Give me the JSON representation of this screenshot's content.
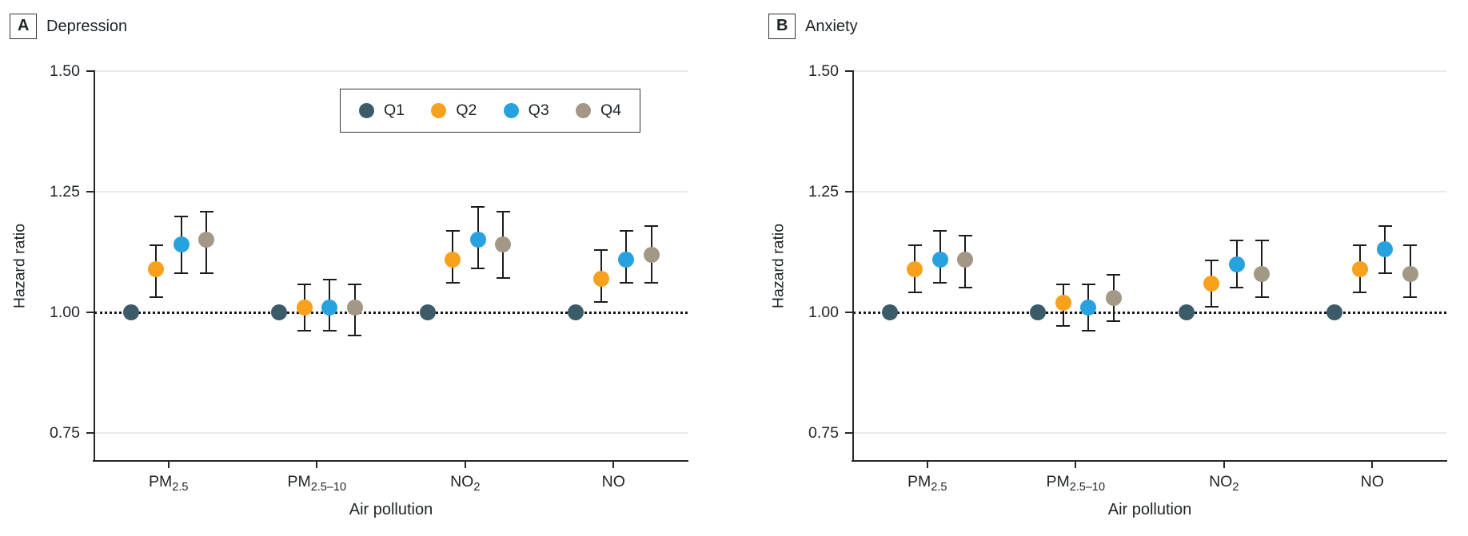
{
  "figure": {
    "panels": [
      {
        "letter": "A",
        "title": "Depression"
      },
      {
        "letter": "B",
        "title": "Anxiety"
      }
    ],
    "y_axis": {
      "label": "Hazard ratio",
      "tick_labels": [
        "1.50",
        "1.25",
        "1.00",
        "0.75"
      ]
    },
    "x_axis": {
      "label": "Air pollution",
      "tick_display": [
        {
          "base": "PM",
          "sub": "2.5"
        },
        {
          "base": "PM",
          "sub": "2.5–10"
        },
        {
          "base": "NO",
          "sub": "2"
        },
        {
          "base": "NO",
          "sub": ""
        }
      ]
    },
    "legend": {
      "items": [
        {
          "label": "Q1",
          "color": "#3B5B69"
        },
        {
          "label": "Q2",
          "color": "#F7A11C"
        },
        {
          "label": "Q3",
          "color": "#27A2DF"
        },
        {
          "label": "Q4",
          "color": "#A39785"
        }
      ]
    }
  },
  "chart_data": [
    {
      "type": "scatter",
      "panel": "A",
      "title": "Depression",
      "xlabel": "Air pollution",
      "ylabel": "Hazard ratio",
      "ylim": [
        0.69,
        1.5
      ],
      "yticks": [
        0.75,
        1.0,
        1.25,
        1.5
      ],
      "reference_line": 1.0,
      "grid": "horizontal",
      "legend_position": "inside-top-center",
      "categories": [
        "PM2.5",
        "PM2.5-10",
        "NO2",
        "NO"
      ],
      "series": [
        {
          "name": "Q1",
          "values": [
            1.0,
            1.0,
            1.0,
            1.0
          ],
          "ci_low": [
            null,
            null,
            null,
            null
          ],
          "ci_high": [
            null,
            null,
            null,
            null
          ]
        },
        {
          "name": "Q2",
          "values": [
            1.09,
            1.01,
            1.11,
            1.07
          ],
          "ci_low": [
            1.03,
            0.96,
            1.06,
            1.02
          ],
          "ci_high": [
            1.14,
            1.06,
            1.17,
            1.13
          ]
        },
        {
          "name": "Q3",
          "values": [
            1.14,
            1.01,
            1.15,
            1.11
          ],
          "ci_low": [
            1.08,
            0.96,
            1.09,
            1.06
          ],
          "ci_high": [
            1.2,
            1.07,
            1.22,
            1.17
          ]
        },
        {
          "name": "Q4",
          "values": [
            1.15,
            1.01,
            1.14,
            1.12
          ],
          "ci_low": [
            1.08,
            0.95,
            1.07,
            1.06
          ],
          "ci_high": [
            1.21,
            1.06,
            1.21,
            1.18
          ]
        }
      ]
    },
    {
      "type": "scatter",
      "panel": "B",
      "title": "Anxiety",
      "xlabel": "Air pollution",
      "ylabel": "Hazard ratio",
      "ylim": [
        0.69,
        1.5
      ],
      "yticks": [
        0.75,
        1.0,
        1.25,
        1.5
      ],
      "reference_line": 1.0,
      "grid": "horizontal",
      "legend_position": "none",
      "categories": [
        "PM2.5",
        "PM2.5-10",
        "NO2",
        "NO"
      ],
      "series": [
        {
          "name": "Q1",
          "values": [
            1.0,
            1.0,
            1.0,
            1.0
          ],
          "ci_low": [
            null,
            null,
            null,
            null
          ],
          "ci_high": [
            null,
            null,
            null,
            null
          ]
        },
        {
          "name": "Q2",
          "values": [
            1.09,
            1.02,
            1.06,
            1.09
          ],
          "ci_low": [
            1.04,
            0.97,
            1.01,
            1.04
          ],
          "ci_high": [
            1.14,
            1.06,
            1.11,
            1.14
          ]
        },
        {
          "name": "Q3",
          "values": [
            1.11,
            1.01,
            1.1,
            1.13
          ],
          "ci_low": [
            1.06,
            0.96,
            1.05,
            1.08
          ],
          "ci_high": [
            1.17,
            1.06,
            1.15,
            1.18
          ]
        },
        {
          "name": "Q4",
          "values": [
            1.11,
            1.03,
            1.08,
            1.08
          ],
          "ci_low": [
            1.05,
            0.98,
            1.03,
            1.03
          ],
          "ci_high": [
            1.16,
            1.08,
            1.15,
            1.14
          ]
        }
      ]
    }
  ]
}
